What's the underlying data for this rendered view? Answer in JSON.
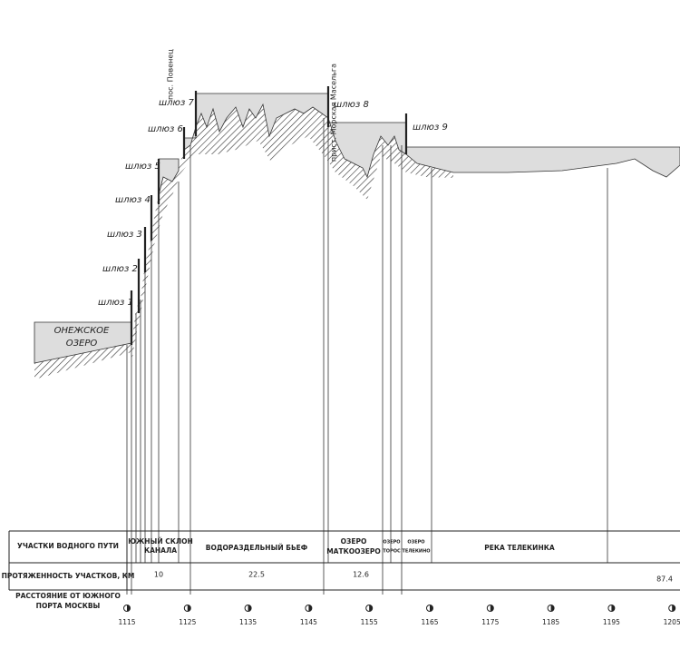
{
  "labels": {
    "povenets": "пос. Повенец",
    "maselga": "прист. Морская Масельга",
    "lake": [
      "ОНЕЖСКОЕ",
      "ОЗЕРО"
    ]
  },
  "locks": [
    "шлюз 1",
    "шлюз 2",
    "шлюз 3",
    "шлюз 4",
    "шлюз 5",
    "шлюз 6",
    "шлюз 7",
    "шлюз 8",
    "шлюз 9"
  ],
  "table": {
    "row_headers": [
      [
        "УЧАСТКИ ВОДНОГО ПУТИ"
      ],
      [
        "ПРОТЯЖЕННОСТЬ УЧАСТКОВ, КМ"
      ],
      [
        "РАССТОЯНИЕ ОТ ЮЖНОГО",
        "ПОРТА МОСКВЫ"
      ]
    ],
    "sections": [
      [
        "ЮЖНЫЙ СКЛОН",
        "КАНАЛА"
      ],
      [
        "ВОДОРАЗДЕЛЬНЫЙ БЬЕФ"
      ],
      [
        "ОЗЕРО",
        "МАТКООЗЕРО"
      ],
      [
        "ОЗЕРО",
        "ТОРОС"
      ],
      [
        "ОЗЕРО",
        "ТЕЛЕКИНО"
      ],
      [
        "РЕКА ТЕЛЕКИНКА"
      ]
    ],
    "lengths": [
      "10",
      "22.5",
      "12.6",
      "87.4"
    ],
    "distances": [
      "1115",
      "1125",
      "1135",
      "1145",
      "1155",
      "1165",
      "1175",
      "1185",
      "1195",
      "1205"
    ]
  }
}
